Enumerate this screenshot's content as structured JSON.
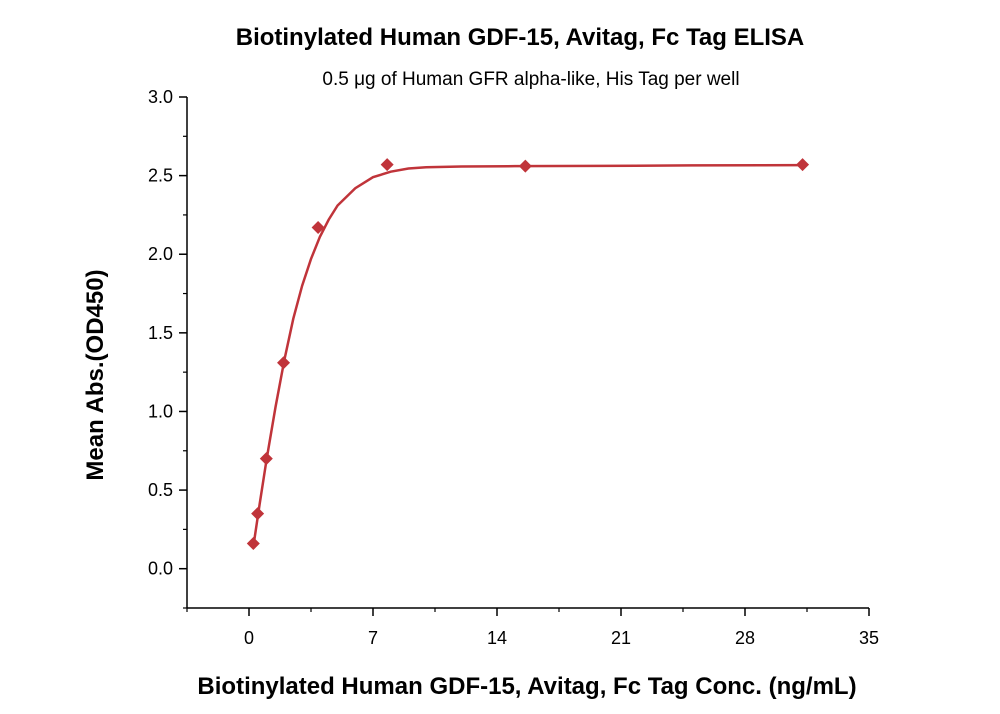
{
  "chart_data": {
    "type": "scatter",
    "title": "Biotinylated Human GDF-15, Avitag, Fc Tag ELISA",
    "subtitle": "0.5 μg of Human GFR alpha-like, His Tag per well",
    "xlabel": "Biotinylated Human GDF-15, Avitag, Fc Tag Conc. (ng/mL)",
    "ylabel": "Mean Abs.(OD450)",
    "xlim": [
      -3.5,
      35
    ],
    "ylim": [
      -0.25,
      3.0
    ],
    "x_ticks": [
      0,
      7,
      14,
      21,
      28,
      35
    ],
    "y_ticks": [
      0.0,
      0.5,
      1.0,
      1.5,
      2.0,
      2.5,
      3.0
    ],
    "x_tick_labels": [
      "0",
      "7",
      "14",
      "21",
      "28",
      "35"
    ],
    "y_tick_labels": [
      "0.0",
      "0.5",
      "1.0",
      "1.5",
      "2.0",
      "2.5",
      "3.0"
    ],
    "grid": false,
    "series": [
      {
        "color": "#c0343a",
        "marker": "diamond",
        "points": [
          {
            "x": 0.244,
            "y": 0.16
          },
          {
            "x": 0.488,
            "y": 0.35
          },
          {
            "x": 0.977,
            "y": 0.7
          },
          {
            "x": 1.95,
            "y": 1.31
          },
          {
            "x": 3.9,
            "y": 2.17
          },
          {
            "x": 7.8,
            "y": 2.57
          },
          {
            "x": 15.6,
            "y": 2.56
          },
          {
            "x": 31.25,
            "y": 2.57
          }
        ],
        "fit_curve": [
          {
            "x": 0.244,
            "y": 0.14
          },
          {
            "x": 0.6,
            "y": 0.41
          },
          {
            "x": 1.0,
            "y": 0.7
          },
          {
            "x": 1.5,
            "y": 1.03
          },
          {
            "x": 2.0,
            "y": 1.33
          },
          {
            "x": 2.5,
            "y": 1.59
          },
          {
            "x": 3.0,
            "y": 1.8
          },
          {
            "x": 3.5,
            "y": 1.97
          },
          {
            "x": 4.0,
            "y": 2.11
          },
          {
            "x": 4.5,
            "y": 2.22
          },
          {
            "x": 5.0,
            "y": 2.31
          },
          {
            "x": 6.0,
            "y": 2.42
          },
          {
            "x": 7.0,
            "y": 2.49
          },
          {
            "x": 8.0,
            "y": 2.525
          },
          {
            "x": 9.0,
            "y": 2.545
          },
          {
            "x": 10.0,
            "y": 2.553
          },
          {
            "x": 12.0,
            "y": 2.558
          },
          {
            "x": 15.0,
            "y": 2.56
          },
          {
            "x": 20.0,
            "y": 2.562
          },
          {
            "x": 25.0,
            "y": 2.565
          },
          {
            "x": 31.25,
            "y": 2.567
          }
        ]
      }
    ]
  }
}
